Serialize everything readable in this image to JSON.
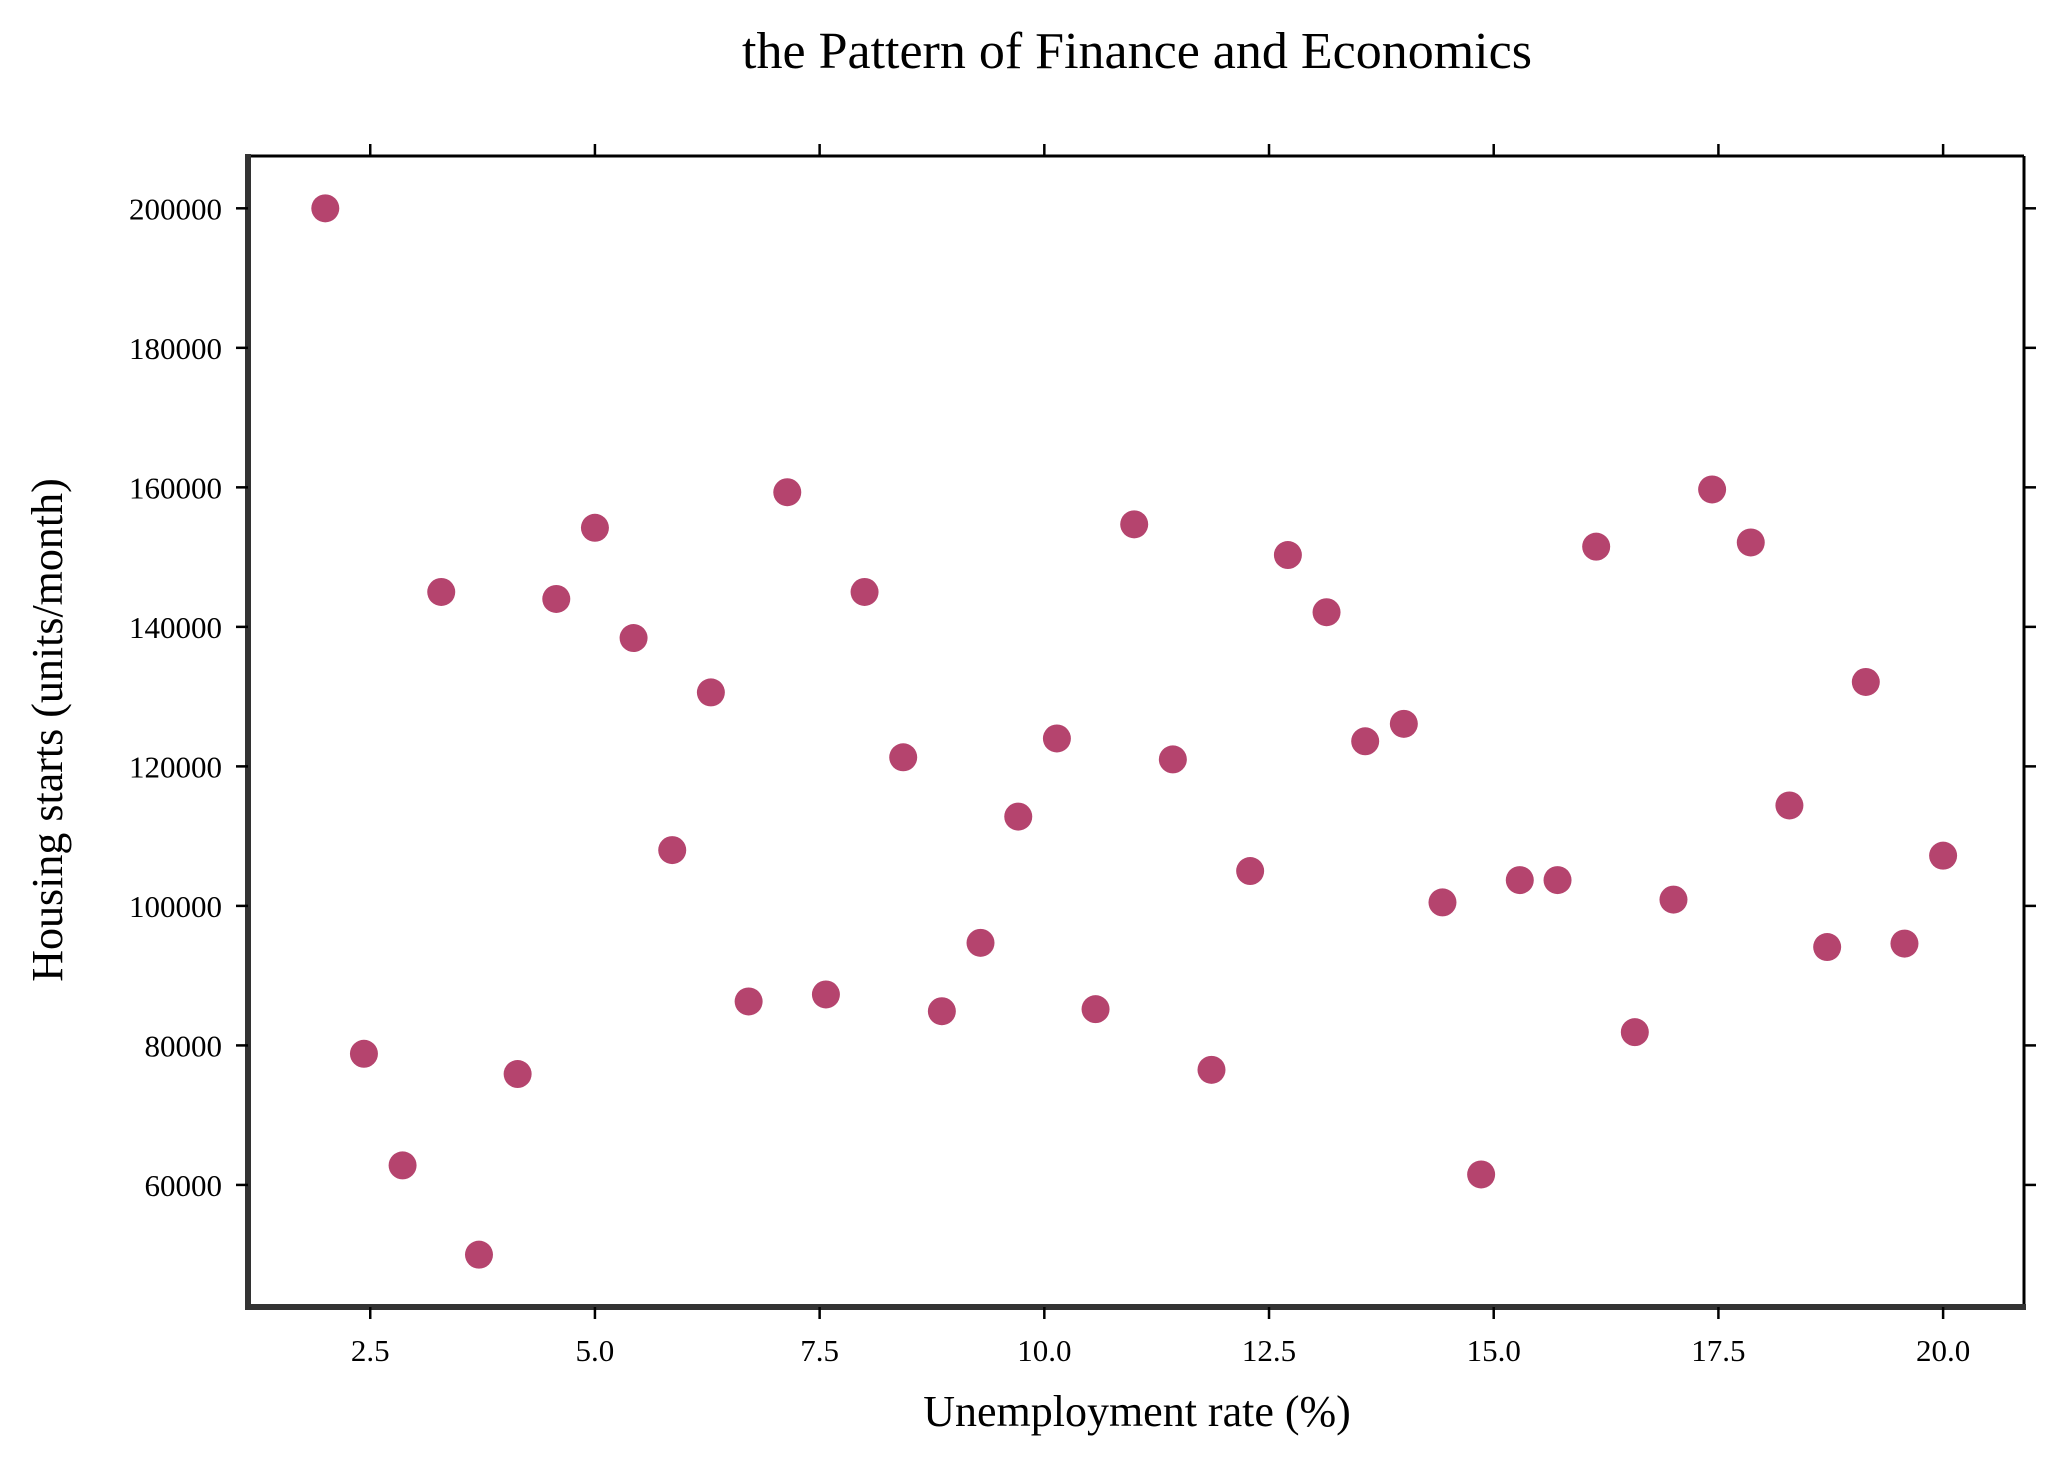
{
  "chart_data": {
    "type": "scatter",
    "title": "the Pattern of Finance and Economics",
    "xlabel": "Unemployment rate (%)",
    "ylabel": "Housing starts (units/month)",
    "xlim": [
      1.14,
      20.9
    ],
    "ylim": [
      42500,
      207500
    ],
    "xticks": [
      2.5,
      5.0,
      7.5,
      10.0,
      12.5,
      15.0,
      17.5,
      20.0
    ],
    "xtick_labels": [
      "2.5",
      "5.0",
      "7.5",
      "10.0",
      "12.5",
      "15.0",
      "17.5",
      "20.0"
    ],
    "yticks": [
      60000,
      80000,
      100000,
      120000,
      140000,
      160000,
      180000,
      200000
    ],
    "ytick_labels": [
      "60000",
      "80000",
      "100000",
      "120000",
      "140000",
      "160000",
      "180000",
      "200000"
    ],
    "grid": false,
    "marker_color": "#b5446e",
    "x": [
      2.0,
      2.43,
      2.86,
      3.29,
      3.71,
      4.14,
      4.57,
      5.0,
      5.43,
      5.86,
      6.29,
      6.71,
      7.14,
      7.57,
      8.0,
      8.43,
      8.86,
      9.29,
      9.71,
      10.14,
      10.57,
      11.0,
      11.43,
      11.86,
      12.29,
      12.71,
      13.14,
      13.57,
      14.0,
      14.43,
      14.86,
      15.29,
      15.71,
      16.14,
      16.57,
      17.0,
      17.43,
      17.86,
      18.29,
      18.71,
      19.14,
      19.57,
      20.0
    ],
    "y": [
      200000,
      78800,
      62800,
      145000,
      50000,
      75900,
      144000,
      154200,
      138400,
      108000,
      130600,
      86300,
      159300,
      87300,
      145000,
      121300,
      84900,
      94700,
      112800,
      124000,
      85200,
      154700,
      121000,
      76500,
      105000,
      150300,
      142100,
      123600,
      126100,
      100500,
      61500,
      103700,
      103700,
      151500,
      81900,
      100900,
      159700,
      152100,
      114400,
      94100,
      132100,
      94600,
      107200
    ]
  }
}
